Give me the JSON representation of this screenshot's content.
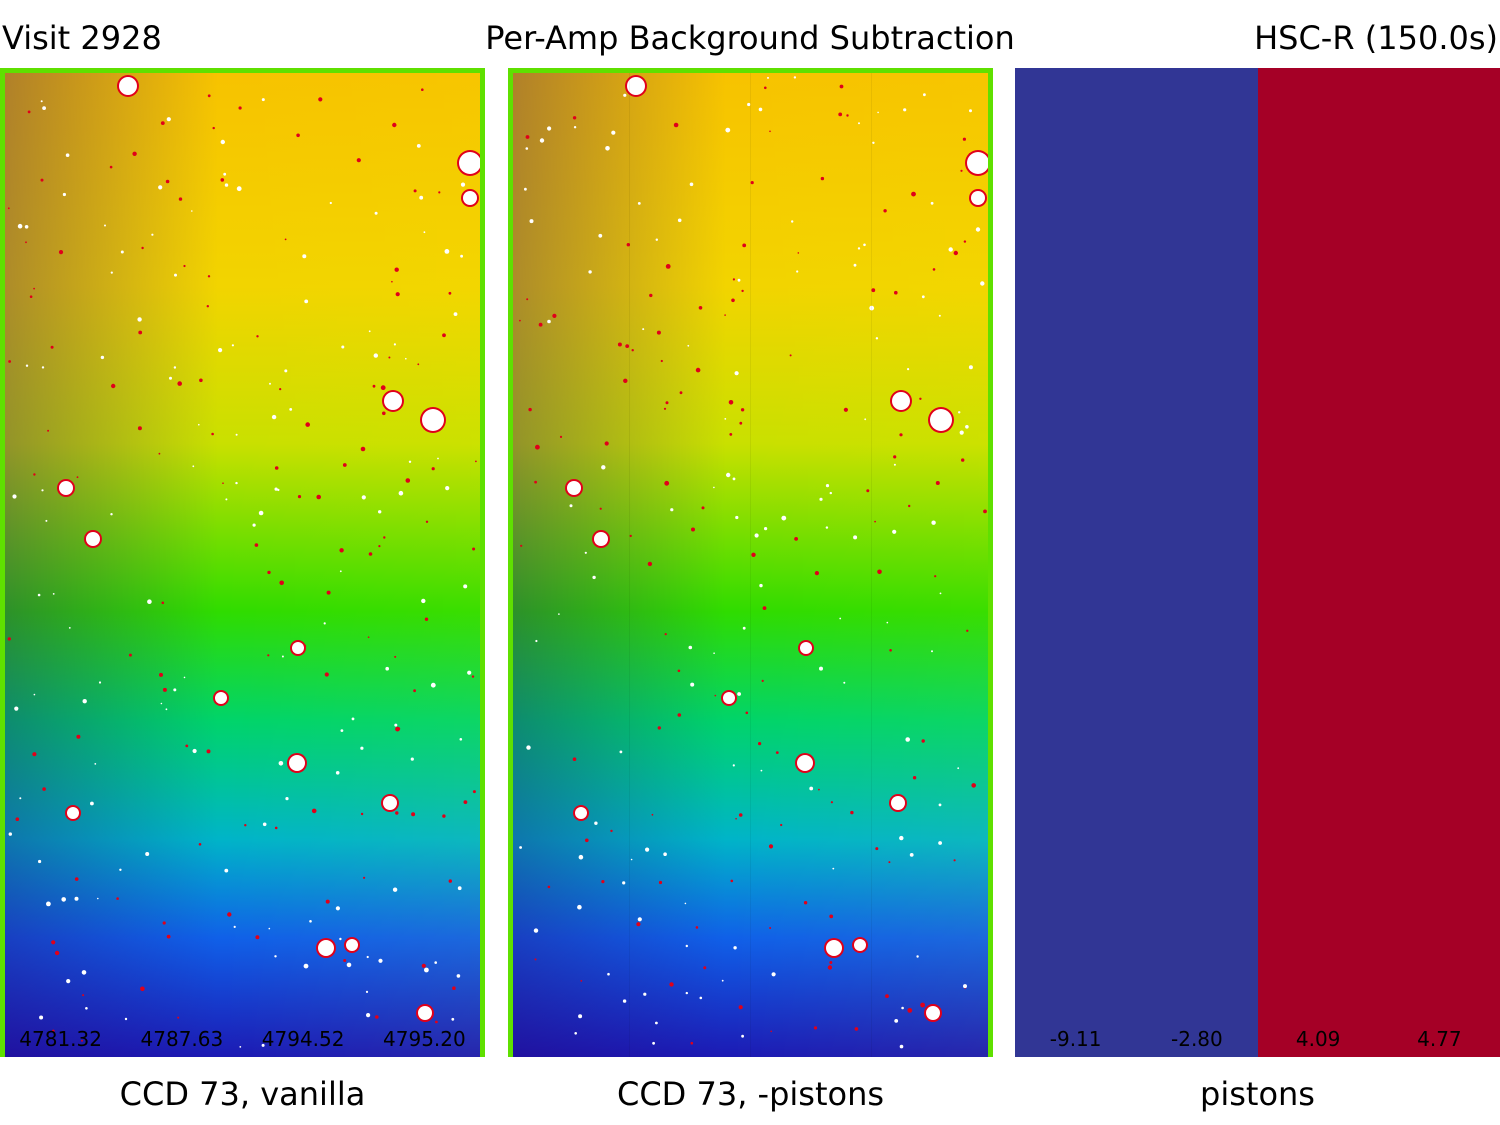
{
  "header": {
    "left": "Visit 2928",
    "center": "Per-Amp Background Subtraction",
    "right": "HSC-R (150.0s)"
  },
  "panels": [
    {
      "caption": "CCD 73, vanilla",
      "amp_values": [
        "4781.32",
        "4787.63",
        "4794.52",
        "4795.20"
      ]
    },
    {
      "caption": "CCD 73, -pistons"
    },
    {
      "caption": "pistons",
      "amp_values": [
        "-9.11",
        "-2.80",
        "4.09",
        "4.77"
      ],
      "amp_colors": [
        "#313695",
        "#313695",
        "#a50026",
        "#a50026"
      ]
    }
  ],
  "colors": {
    "edge": "#5fe000",
    "star_core": "#ffffff",
    "star_ring": "#e0001a"
  }
}
